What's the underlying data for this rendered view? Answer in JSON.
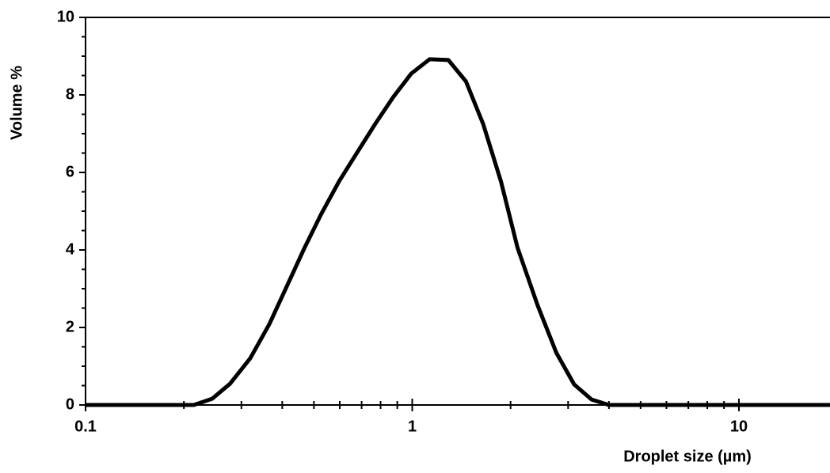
{
  "chart_data": {
    "type": "line",
    "xlabel": "Droplet size (µm)",
    "ylabel": "Volume %",
    "xscale": "log",
    "grid": false,
    "xlim": [
      0.1,
      19
    ],
    "ylim": [
      0,
      10
    ],
    "xticks": [
      0.1,
      1,
      10
    ],
    "yticks": [
      0,
      2,
      4,
      6,
      8,
      10
    ],
    "xminorticks": [
      0.2,
      0.3,
      0.4,
      0.5,
      0.6,
      0.7,
      0.8,
      0.9,
      2,
      3,
      4,
      5,
      6,
      7,
      8,
      9
    ],
    "yminorticks": [
      0.5,
      1,
      1.5,
      2.5,
      3,
      3.5,
      4.5,
      5,
      5.5,
      6.5,
      7,
      7.5,
      8.5,
      9,
      9.5
    ],
    "series": [
      {
        "color": "#000000",
        "x": [
          0.1,
          0.2146,
          0.244,
          0.277,
          0.319,
          0.365,
          0.412,
          0.466,
          0.526,
          0.598,
          0.68,
          0.773,
          0.874,
          0.993,
          1.13,
          1.29,
          1.46,
          1.65,
          1.87,
          2.1,
          2.42,
          2.76,
          3.13,
          3.54,
          4.0,
          19
        ],
        "values": [
          0,
          0,
          0.16,
          0.55,
          1.2,
          2.08,
          3.04,
          4.02,
          4.92,
          5.78,
          6.53,
          7.27,
          7.94,
          8.55,
          8.92,
          8.9,
          8.35,
          7.24,
          5.76,
          4.06,
          2.57,
          1.35,
          0.53,
          0.14,
          0,
          0
        ]
      }
    ]
  }
}
